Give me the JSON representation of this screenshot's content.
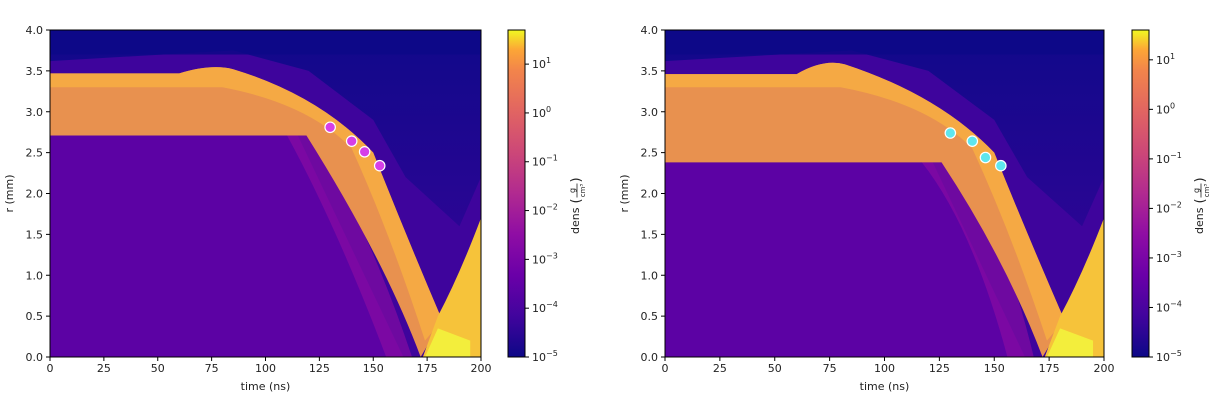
{
  "chart_data": [
    {
      "type": "heatmap",
      "title": "",
      "xlabel": "time (ns)",
      "ylabel": "r (mm)",
      "xlim": [
        0,
        200
      ],
      "ylim": [
        0.0,
        4.0
      ],
      "xticks": [
        "0",
        "25",
        "50",
        "75",
        "100",
        "125",
        "150",
        "175",
        "200"
      ],
      "yticks": [
        "0.0",
        "0.5",
        "1.0",
        "1.5",
        "2.0",
        "2.5",
        "3.0",
        "3.5",
        "4.0"
      ],
      "colorscale": "plasma",
      "log_scale": true,
      "clim": [
        1e-05,
        50
      ],
      "colorbar_label": "dens",
      "colorbar_unit_num": "g",
      "colorbar_unit_den": "cm³",
      "colorbar_ticks": [
        {
          "value": 10,
          "base": "10",
          "exp": "1"
        },
        {
          "value": 1,
          "base": "10",
          "exp": "0"
        },
        {
          "value": 0.1,
          "base": "10",
          "exp": "−1"
        },
        {
          "value": 0.01,
          "base": "10",
          "exp": "−2"
        },
        {
          "value": 0.001,
          "base": "10",
          "exp": "−3"
        },
        {
          "value": 0.0001,
          "base": "10",
          "exp": "−4"
        },
        {
          "value": 1e-05,
          "base": "10",
          "exp": "−5"
        }
      ],
      "markers": {
        "color": "#d63fe8",
        "points": [
          {
            "x": 130,
            "y": 2.81
          },
          {
            "x": 140,
            "y": 2.64
          },
          {
            "x": 146,
            "y": 2.51
          },
          {
            "x": 153,
            "y": 2.34
          }
        ]
      },
      "shell": {
        "outer_r0": 3.47,
        "inner_r0": 2.71,
        "bump_t": 75,
        "bump_r": 3.54,
        "break_t": 115,
        "collapse_t": 176
      }
    },
    {
      "type": "heatmap",
      "title": "",
      "xlabel": "time (ns)",
      "ylabel": "r (mm)",
      "xlim": [
        0,
        200
      ],
      "ylim": [
        0.0,
        4.0
      ],
      "xticks": [
        "0",
        "25",
        "50",
        "75",
        "100",
        "125",
        "150",
        "175",
        "200"
      ],
      "yticks": [
        "0.0",
        "0.5",
        "1.0",
        "1.5",
        "2.0",
        "2.5",
        "3.0",
        "3.5",
        "4.0"
      ],
      "colorscale": "plasma",
      "log_scale": true,
      "clim": [
        1e-05,
        40
      ],
      "colorbar_label": "dens",
      "colorbar_unit_num": "g",
      "colorbar_unit_den": "cm³",
      "colorbar_ticks": [
        {
          "value": 10,
          "base": "10",
          "exp": "1"
        },
        {
          "value": 1,
          "base": "10",
          "exp": "0"
        },
        {
          "value": 0.1,
          "base": "10",
          "exp": "−1"
        },
        {
          "value": 0.01,
          "base": "10",
          "exp": "−2"
        },
        {
          "value": 0.001,
          "base": "10",
          "exp": "−3"
        },
        {
          "value": 0.0001,
          "base": "10",
          "exp": "−4"
        },
        {
          "value": 1e-05,
          "base": "10",
          "exp": "−5"
        }
      ],
      "markers": {
        "color": "#5ee6ee",
        "points": [
          {
            "x": 130,
            "y": 2.74
          },
          {
            "x": 140,
            "y": 2.64
          },
          {
            "x": 146,
            "y": 2.44
          },
          {
            "x": 153,
            "y": 2.34
          }
        ]
      },
      "shell": {
        "outer_r0": 3.46,
        "inner_r0": 2.38,
        "bump_t": 72,
        "bump_r": 3.6,
        "break_t": 122,
        "collapse_t": 176
      }
    }
  ]
}
